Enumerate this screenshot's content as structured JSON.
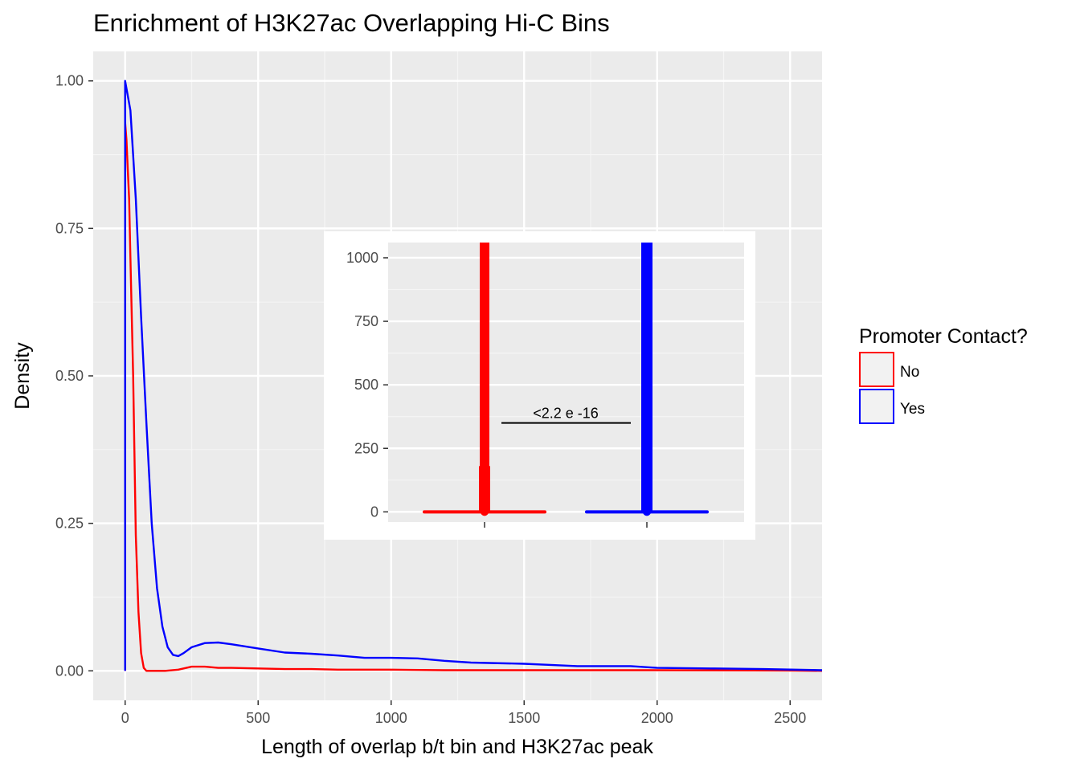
{
  "chart_data": {
    "type": "line",
    "title": "Enrichment of H3K27ac Overlapping Hi-C Bins",
    "xlabel": "Length of overlap b/t bin and H3K27ac peak",
    "ylabel": "Density",
    "xlim": [
      -120,
      2620
    ],
    "ylim": [
      -0.05,
      1.05
    ],
    "xticks": [
      0,
      500,
      1000,
      1500,
      2000,
      2500
    ],
    "xtick_labels": [
      "0",
      "500",
      "1000",
      "1500",
      "2000",
      "2500"
    ],
    "yticks": [
      0,
      0.25,
      0.5,
      0.75,
      1.0
    ],
    "ytick_labels": [
      "0.00",
      "0.25",
      "0.50",
      "0.75",
      "1.00"
    ],
    "grid": true,
    "legend": {
      "title": "Promoter Contact?",
      "position": "right",
      "entries": [
        {
          "label": "No",
          "color": "#ff0000"
        },
        {
          "label": "Yes",
          "color": "#0000ff"
        }
      ]
    },
    "series": [
      {
        "name": "No",
        "color": "#ff0000",
        "x": [
          0,
          0,
          5,
          10,
          15,
          20,
          30,
          40,
          50,
          60,
          70,
          80,
          100,
          150,
          200,
          250,
          300,
          350,
          400,
          500,
          600,
          700,
          800,
          1000,
          1200,
          1500,
          2000,
          2500,
          2620
        ],
        "y": [
          0,
          0.93,
          0.9,
          0.85,
          0.8,
          0.7,
          0.5,
          0.23,
          0.1,
          0.03,
          0.005,
          0,
          0,
          0,
          0.002,
          0.007,
          0.007,
          0.005,
          0.005,
          0.004,
          0.003,
          0.003,
          0.002,
          0.002,
          0.001,
          0.001,
          0.001,
          0.0005,
          0
        ]
      },
      {
        "name": "Yes",
        "color": "#0000ff",
        "x": [
          0,
          0,
          20,
          40,
          60,
          80,
          100,
          120,
          140,
          160,
          180,
          200,
          220,
          250,
          300,
          350,
          400,
          500,
          600,
          700,
          800,
          900,
          1000,
          1100,
          1200,
          1300,
          1500,
          1600,
          1700,
          1800,
          1900,
          2000,
          2200,
          2400,
          2620
        ],
        "y": [
          0,
          1.0,
          0.95,
          0.8,
          0.6,
          0.42,
          0.25,
          0.14,
          0.075,
          0.04,
          0.027,
          0.025,
          0.03,
          0.04,
          0.047,
          0.048,
          0.045,
          0.038,
          0.031,
          0.029,
          0.026,
          0.022,
          0.022,
          0.021,
          0.017,
          0.014,
          0.012,
          0.01,
          0.008,
          0.008,
          0.008,
          0.005,
          0.004,
          0.003,
          0.001
        ]
      }
    ],
    "inset": {
      "type": "boxplot",
      "ylim": [
        -40,
        1060
      ],
      "yticks": [
        0,
        250,
        500,
        750,
        1000
      ],
      "ytick_labels": [
        "0",
        "250",
        "500",
        "750",
        "1000"
      ],
      "groups": [
        {
          "name": "No",
          "color": "#ff0000",
          "whisker_low": 0,
          "box_low": 0,
          "median": 0,
          "box_high": 0,
          "outlier_top": 1060,
          "dense_outliers_top": 180
        },
        {
          "name": "Yes",
          "color": "#0000ff",
          "whisker_low": 0,
          "box_low": 0,
          "median": 0,
          "box_high": 0,
          "outlier_top": 1060,
          "dense_outliers_top": 1060
        }
      ],
      "annotation": {
        "text": "<2.2 e -16",
        "y": 350
      }
    }
  }
}
